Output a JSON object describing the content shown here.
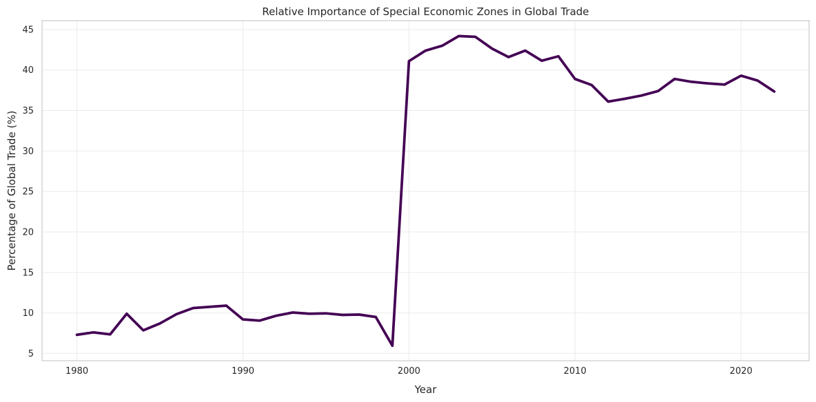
{
  "chart_data": {
    "type": "line",
    "title": "Relative Importance of Special Economic Zones in Global Trade",
    "xlabel": "Year",
    "ylabel": "Percentage of Global Trade (%)",
    "xlim": [
      1977.9,
      2024.1
    ],
    "ylim": [
      4.1,
      46.1
    ],
    "xticks": [
      1980,
      1990,
      2000,
      2010,
      2020
    ],
    "yticks": [
      5,
      10,
      15,
      20,
      25,
      30,
      35,
      40,
      45
    ],
    "grid": true,
    "legend": "none",
    "line_color": "#440154",
    "series": [
      {
        "x": [
          1980,
          1981,
          1982,
          1983,
          1984,
          1985,
          1986,
          1987,
          1988,
          1989,
          1990,
          1991,
          1992,
          1993,
          1994,
          1995,
          1996,
          1997,
          1998,
          1999,
          2000,
          2001,
          2002,
          2003,
          2004,
          2005,
          2006,
          2007,
          2008,
          2009,
          2010,
          2011,
          2012,
          2013,
          2014,
          2015,
          2016,
          2017,
          2018,
          2019,
          2020,
          2021,
          2022
        ],
        "values": [
          7.3,
          7.6,
          7.35,
          9.9,
          7.85,
          8.7,
          9.85,
          10.6,
          10.75,
          10.9,
          9.2,
          9.05,
          9.65,
          10.05,
          9.9,
          9.95,
          9.75,
          9.8,
          9.5,
          5.95,
          41.1,
          42.4,
          43.0,
          44.2,
          44.1,
          42.65,
          41.6,
          42.4,
          41.15,
          41.7,
          38.9,
          38.15,
          36.1,
          36.45,
          36.85,
          37.4,
          38.9,
          38.55,
          38.35,
          38.2,
          39.3,
          38.7,
          37.35
        ]
      }
    ]
  }
}
